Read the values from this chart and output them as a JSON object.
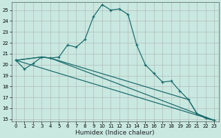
{
  "title": "",
  "xlabel": "Humidex (Indice chaleur)",
  "bg_color": "#c8e8e0",
  "grid_color": "#b0b0b0",
  "line_color": "#1a6b6b",
  "xlim": [
    -0.5,
    23.5
  ],
  "ylim": [
    14.8,
    25.7
  ],
  "yticks": [
    15,
    16,
    17,
    18,
    19,
    20,
    21,
    22,
    23,
    24,
    25
  ],
  "xticks": [
    0,
    1,
    2,
    3,
    4,
    5,
    6,
    7,
    8,
    9,
    10,
    11,
    12,
    13,
    14,
    15,
    16,
    17,
    18,
    19,
    20,
    21,
    22,
    23
  ],
  "line1_x": [
    0,
    1,
    2,
    3,
    4,
    5,
    6,
    7,
    8,
    9,
    10,
    11,
    12,
    13,
    14,
    15,
    16,
    17,
    18,
    19,
    20,
    21,
    22,
    23
  ],
  "line1_y": [
    20.4,
    19.6,
    20.1,
    20.7,
    20.6,
    20.7,
    21.8,
    21.6,
    22.3,
    24.4,
    25.5,
    25.0,
    25.1,
    24.6,
    21.8,
    20.0,
    19.2,
    18.4,
    18.5,
    17.6,
    16.8,
    15.5,
    15.1,
    14.9
  ],
  "line2_x": [
    0,
    3,
    4,
    23
  ],
  "line2_y": [
    20.4,
    20.7,
    20.6,
    14.9
  ],
  "line3_x": [
    0,
    3,
    4,
    20,
    21,
    22,
    23
  ],
  "line3_y": [
    20.4,
    20.7,
    20.6,
    16.8,
    15.5,
    15.1,
    14.9
  ],
  "line4_x": [
    0,
    23
  ],
  "line4_y": [
    20.4,
    14.9
  ]
}
